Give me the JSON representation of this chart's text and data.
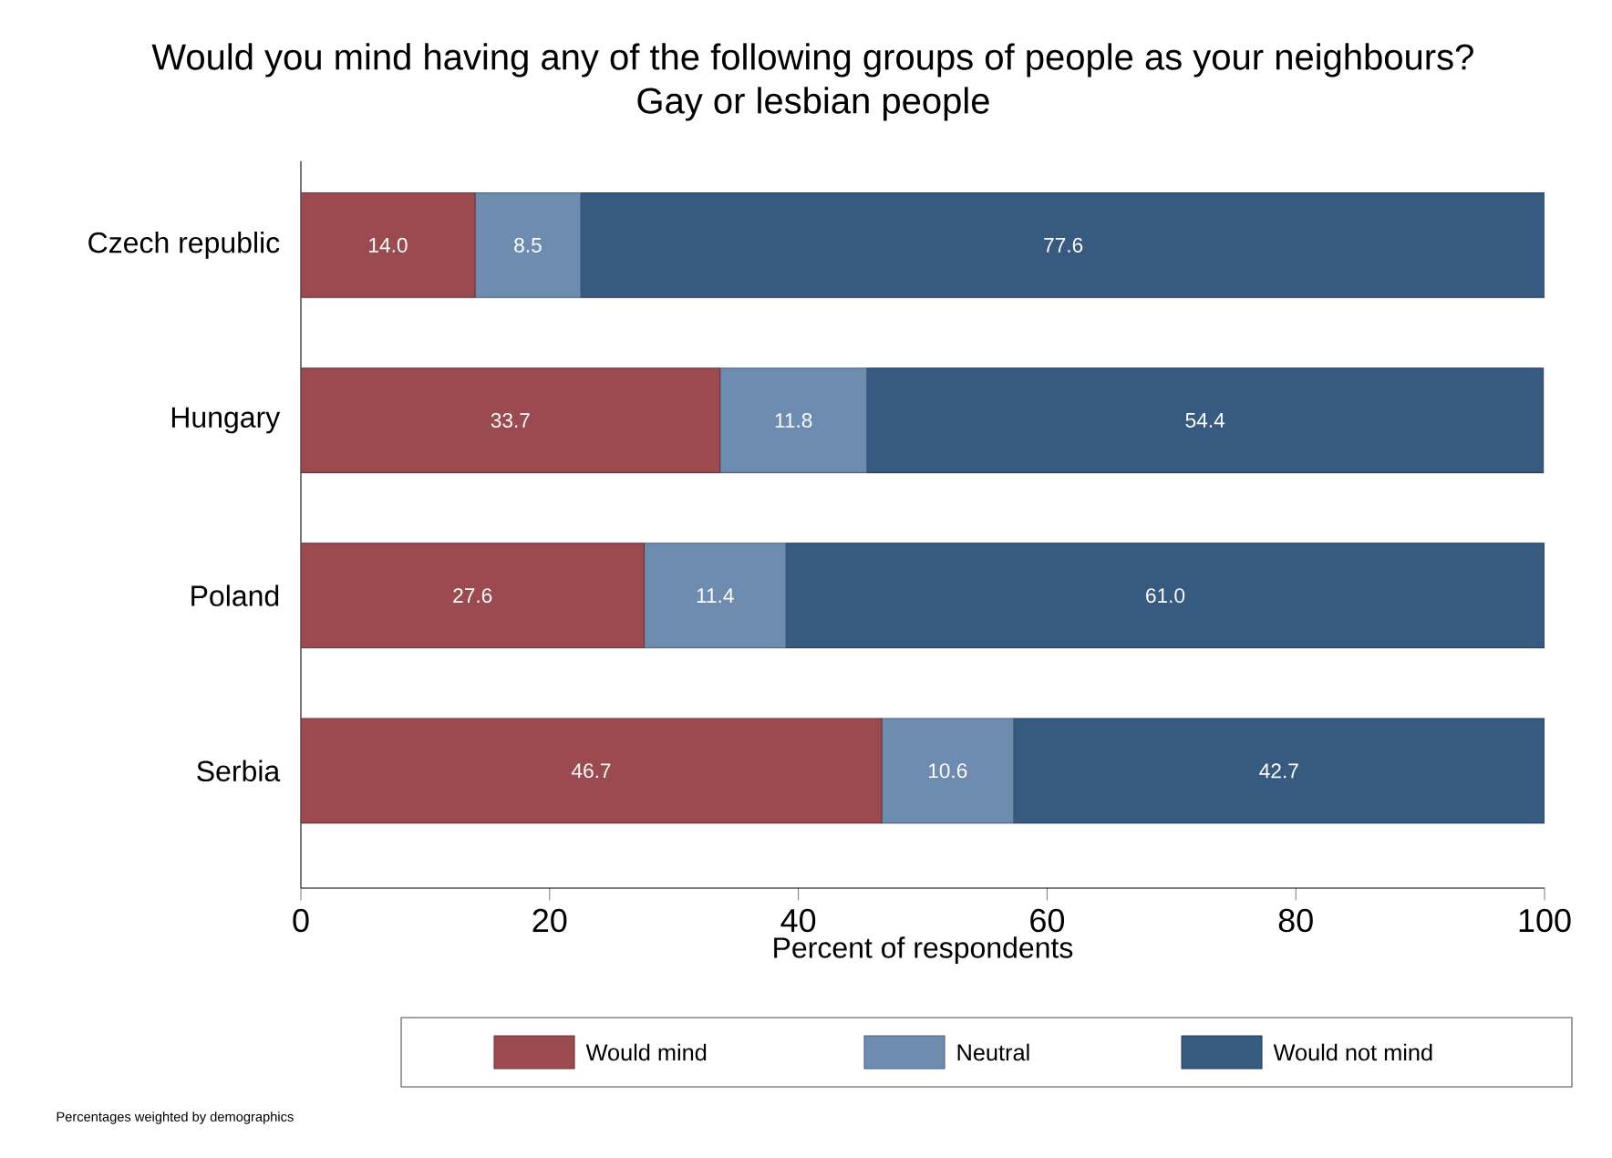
{
  "chart_data": {
    "type": "bar",
    "orientation": "horizontal",
    "stacked": true,
    "title": "Would you mind having any of the following groups of people as your neighbours?",
    "subtitle": "Gay or lesbian people",
    "xlabel": "Percent of respondents",
    "categories": [
      "Czech republic",
      "Hungary",
      "Poland",
      "Serbia"
    ],
    "series": [
      {
        "name": "Would mind",
        "color": "#9b4a4f",
        "values": [
          14.0,
          33.7,
          27.6,
          46.7
        ],
        "value_labels": [
          "14.0",
          "33.7",
          "27.6",
          "46.7"
        ]
      },
      {
        "name": "Neutral",
        "color": "#6e8caf",
        "values": [
          8.5,
          11.8,
          11.4,
          10.6
        ],
        "value_labels": [
          "8.5",
          "11.8",
          "11.4",
          "10.6"
        ]
      },
      {
        "name": "Would not mind",
        "color": "#365a80",
        "values": [
          77.6,
          54.4,
          61.0,
          42.7
        ],
        "value_labels": [
          "77.6",
          "54.4",
          "61.0",
          "42.7"
        ]
      }
    ],
    "xlim": [
      0,
      100
    ],
    "xticks": [
      0,
      20,
      40,
      60,
      80,
      100
    ],
    "grid": false,
    "legend": "bottom",
    "annotations": [
      "Percentages weighted by demographics"
    ]
  }
}
